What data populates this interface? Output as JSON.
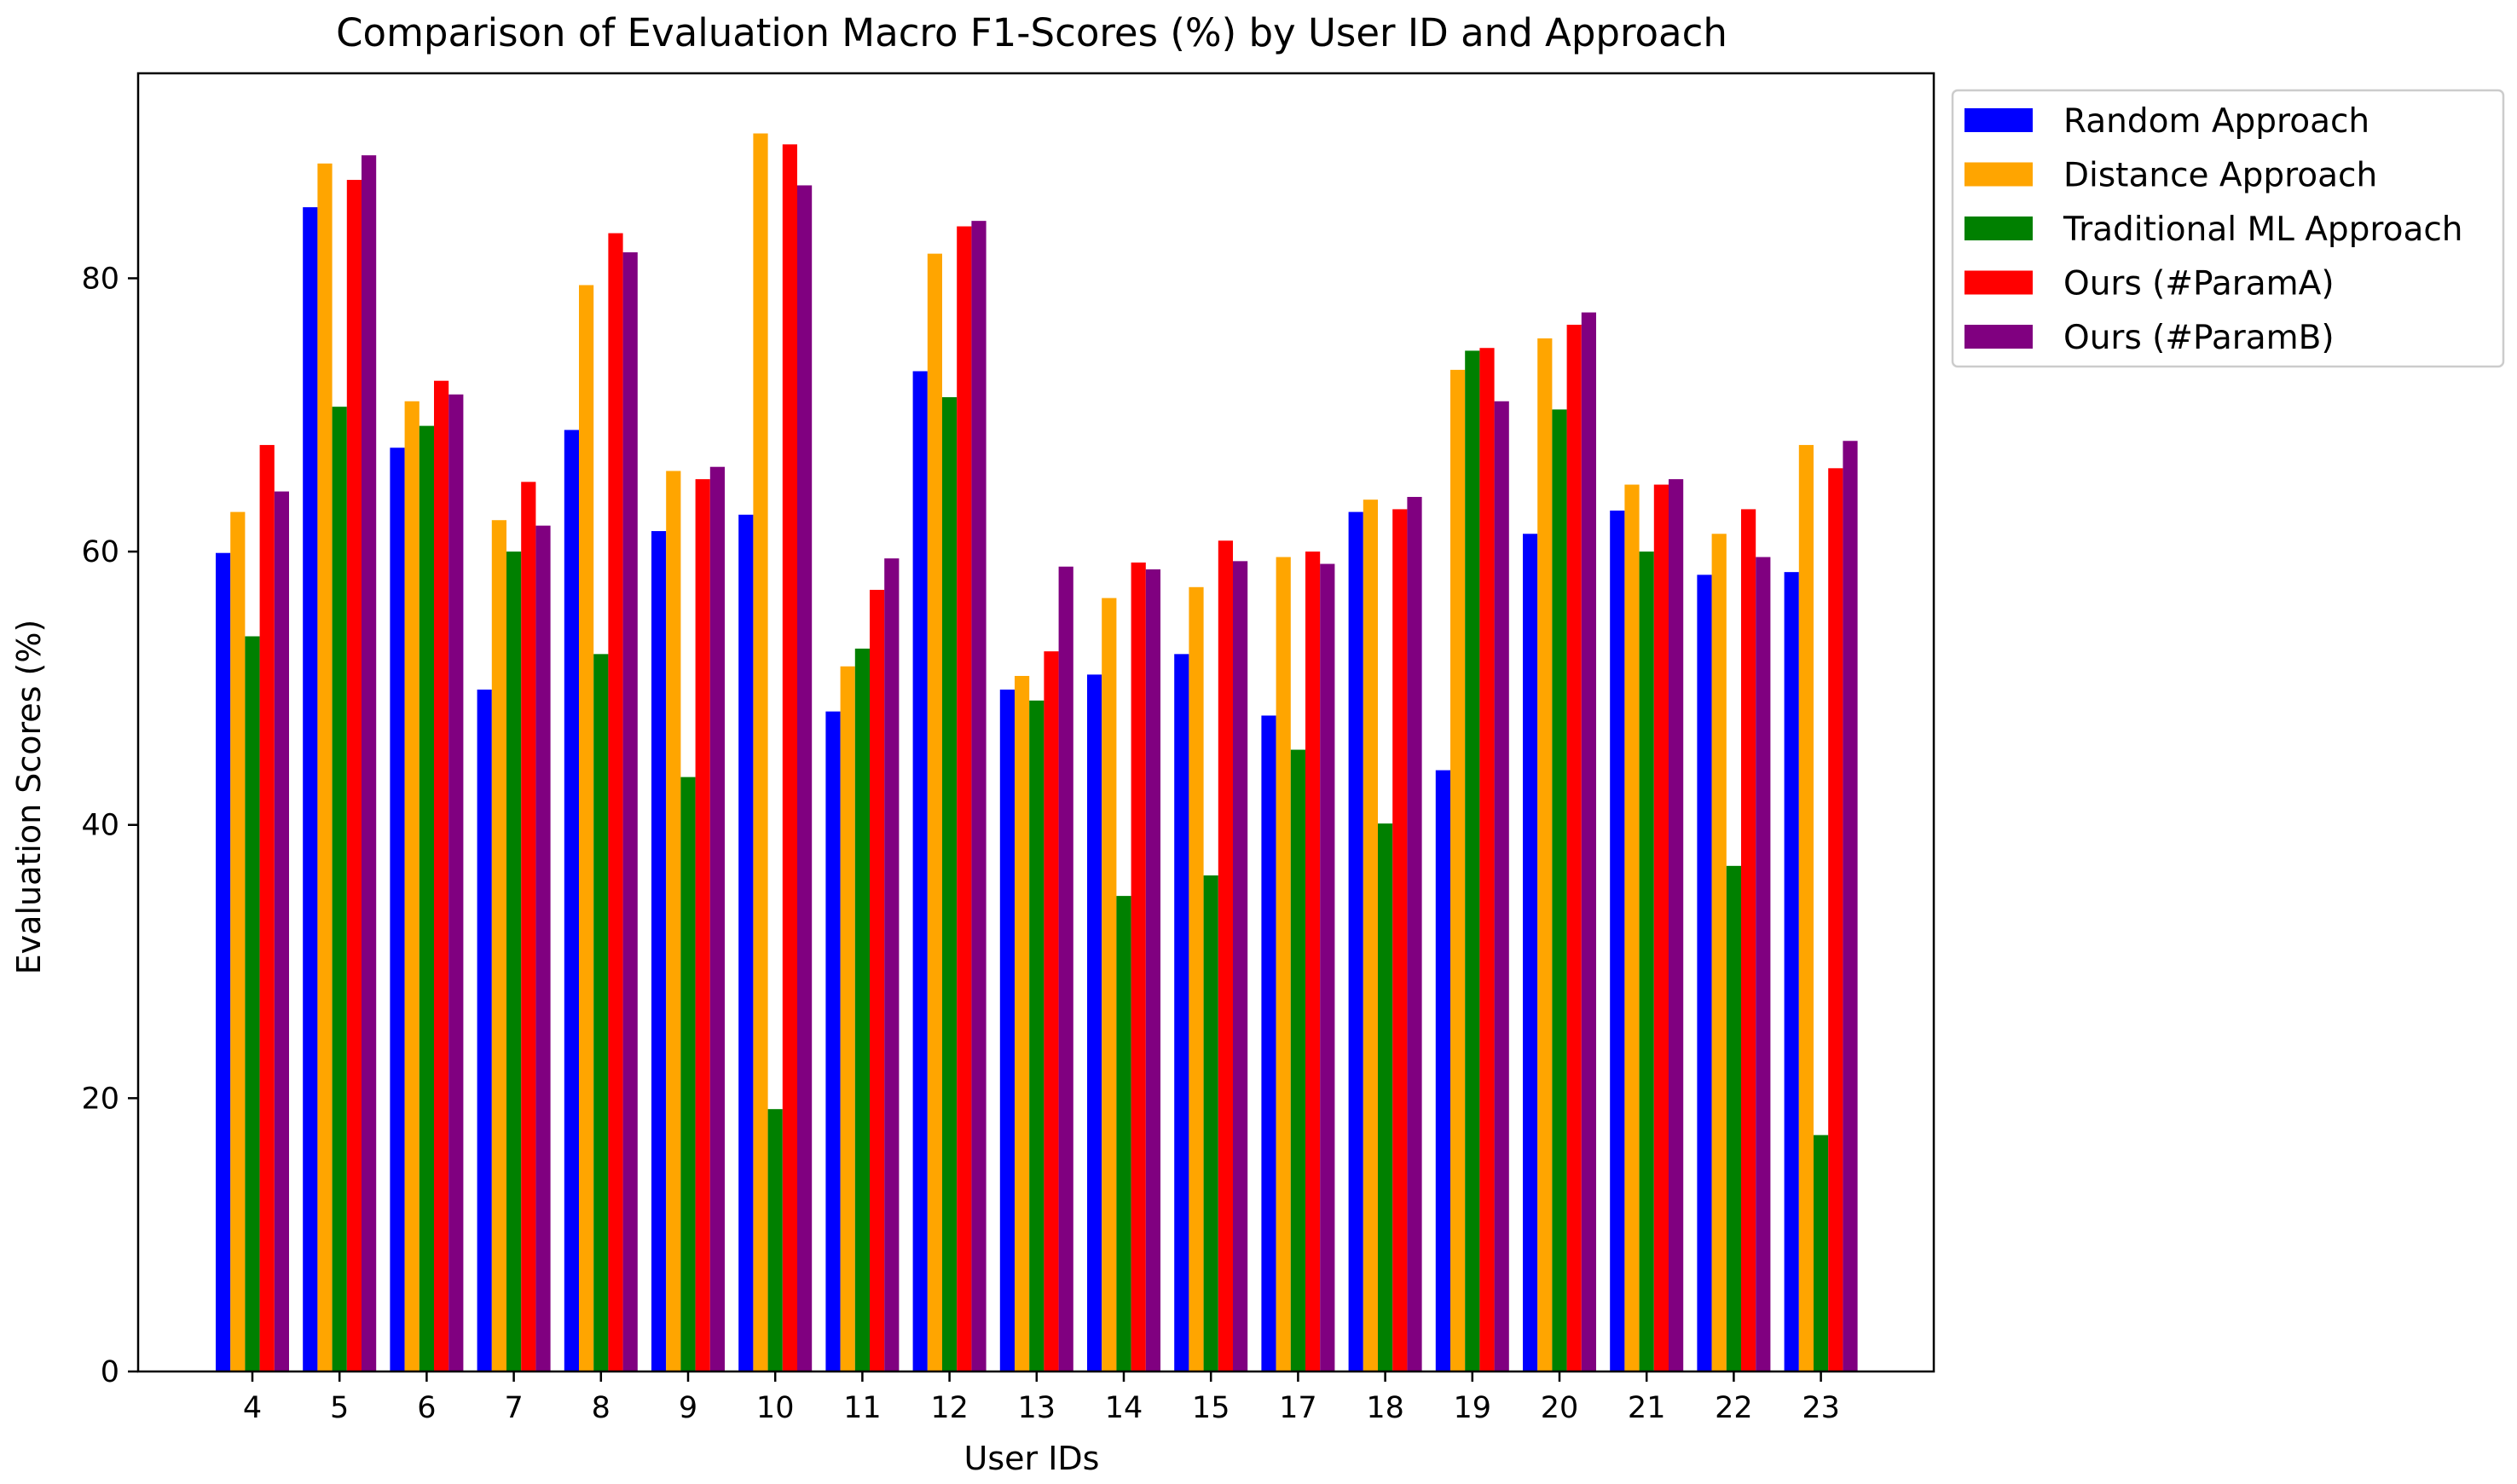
{
  "chart_data": {
    "type": "bar",
    "title": "Comparison of Evaluation Macro F1-Scores (%) by User ID and Approach",
    "xlabel": "User IDs",
    "ylabel": "Evaluation Scores (%)",
    "ylim": [
      0,
      95
    ],
    "yticks": [
      0,
      20,
      40,
      60,
      80
    ],
    "grid": false,
    "legend_position": "outside-top-right",
    "categories": [
      "4",
      "5",
      "6",
      "7",
      "8",
      "9",
      "10",
      "11",
      "12",
      "13",
      "14",
      "15",
      "17",
      "18",
      "19",
      "20",
      "21",
      "22",
      "23"
    ],
    "series": [
      {
        "name": "Random Approach",
        "color": "#0000ff",
        "values": [
          59.9,
          85.2,
          67.6,
          49.9,
          68.9,
          61.5,
          62.7,
          48.3,
          73.2,
          49.9,
          51.0,
          52.5,
          48.0,
          62.9,
          44.0,
          61.3,
          63.0,
          58.3,
          58.5
        ]
      },
      {
        "name": "Distance Approach",
        "color": "#ffa500",
        "values": [
          62.9,
          88.4,
          71.0,
          62.3,
          79.5,
          65.9,
          90.6,
          51.6,
          81.8,
          50.9,
          56.6,
          57.4,
          59.6,
          63.8,
          73.3,
          75.6,
          64.9,
          61.3,
          67.8
        ]
      },
      {
        "name": "Traditional ML Approach",
        "color": "#008000",
        "values": [
          53.8,
          70.6,
          69.2,
          60.0,
          52.5,
          43.5,
          19.2,
          52.9,
          71.3,
          49.1,
          34.8,
          36.3,
          45.5,
          40.1,
          74.7,
          70.4,
          60.0,
          37.0,
          17.3
        ]
      },
      {
        "name": "Ours (#ParamA)",
        "color": "#ff0000",
        "values": [
          67.8,
          87.2,
          72.5,
          65.1,
          83.3,
          65.3,
          89.8,
          57.2,
          83.8,
          52.7,
          59.2,
          60.8,
          60.0,
          63.1,
          74.9,
          76.6,
          64.9,
          63.1,
          66.1
        ]
      },
      {
        "name": "Ours (#ParamB)",
        "color": "#800080",
        "values": [
          64.4,
          89.0,
          71.5,
          61.9,
          81.9,
          66.2,
          86.8,
          59.5,
          84.2,
          58.9,
          58.7,
          59.3,
          59.1,
          64.0,
          71.0,
          77.5,
          65.3,
          59.6,
          68.1
        ]
      }
    ]
  }
}
